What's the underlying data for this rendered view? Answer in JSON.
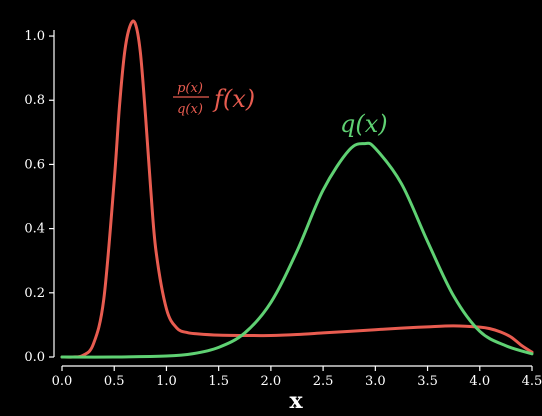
{
  "chart_data": {
    "type": "line",
    "background": "#000000",
    "axis_color": "#ffffff",
    "xlabel": "x",
    "ylabel": "",
    "xlim": [
      0.0,
      4.5
    ],
    "ylim": [
      0.0,
      1.05
    ],
    "x_ticks": [
      "0.0",
      "0.5",
      "1.0",
      "1.5",
      "2.0",
      "2.5",
      "3.0",
      "3.5",
      "4.0",
      "4.5"
    ],
    "y_ticks": [
      "0.0",
      "0.2",
      "0.4",
      "0.6",
      "0.8",
      "1.0"
    ],
    "grid": false,
    "series": [
      {
        "name": "p(x)/q(x) f(x)",
        "label_numerator": "p(x)",
        "label_denominator": "q(x)",
        "label_tail": "f(x)",
        "color": "#e85c50",
        "x": [
          0.0,
          0.1,
          0.2,
          0.3,
          0.4,
          0.5,
          0.55,
          0.6,
          0.65,
          0.7,
          0.75,
          0.8,
          0.85,
          0.9,
          1.0,
          1.1,
          1.2,
          1.3,
          1.5,
          1.75,
          2.0,
          2.25,
          2.5,
          2.75,
          3.0,
          3.25,
          3.5,
          3.75,
          4.0,
          4.1,
          4.2,
          4.3,
          4.4,
          4.5
        ],
        "y": [
          0.0,
          0.0,
          0.005,
          0.04,
          0.18,
          0.55,
          0.78,
          0.95,
          1.03,
          1.04,
          0.95,
          0.75,
          0.52,
          0.33,
          0.15,
          0.09,
          0.076,
          0.072,
          0.068,
          0.067,
          0.067,
          0.07,
          0.075,
          0.08,
          0.085,
          0.09,
          0.094,
          0.097,
          0.093,
          0.088,
          0.078,
          0.062,
          0.036,
          0.015
        ]
      },
      {
        "name": "q(x)",
        "label": "q(x)",
        "color": "#5fd173",
        "x": [
          0.0,
          0.5,
          1.0,
          1.25,
          1.5,
          1.75,
          2.0,
          2.25,
          2.5,
          2.75,
          2.9,
          3.0,
          3.25,
          3.5,
          3.75,
          4.0,
          4.25,
          4.5
        ],
        "y": [
          0.0,
          0.0,
          0.003,
          0.01,
          0.03,
          0.075,
          0.17,
          0.33,
          0.52,
          0.645,
          0.665,
          0.65,
          0.54,
          0.36,
          0.19,
          0.08,
          0.035,
          0.01
        ]
      }
    ]
  }
}
